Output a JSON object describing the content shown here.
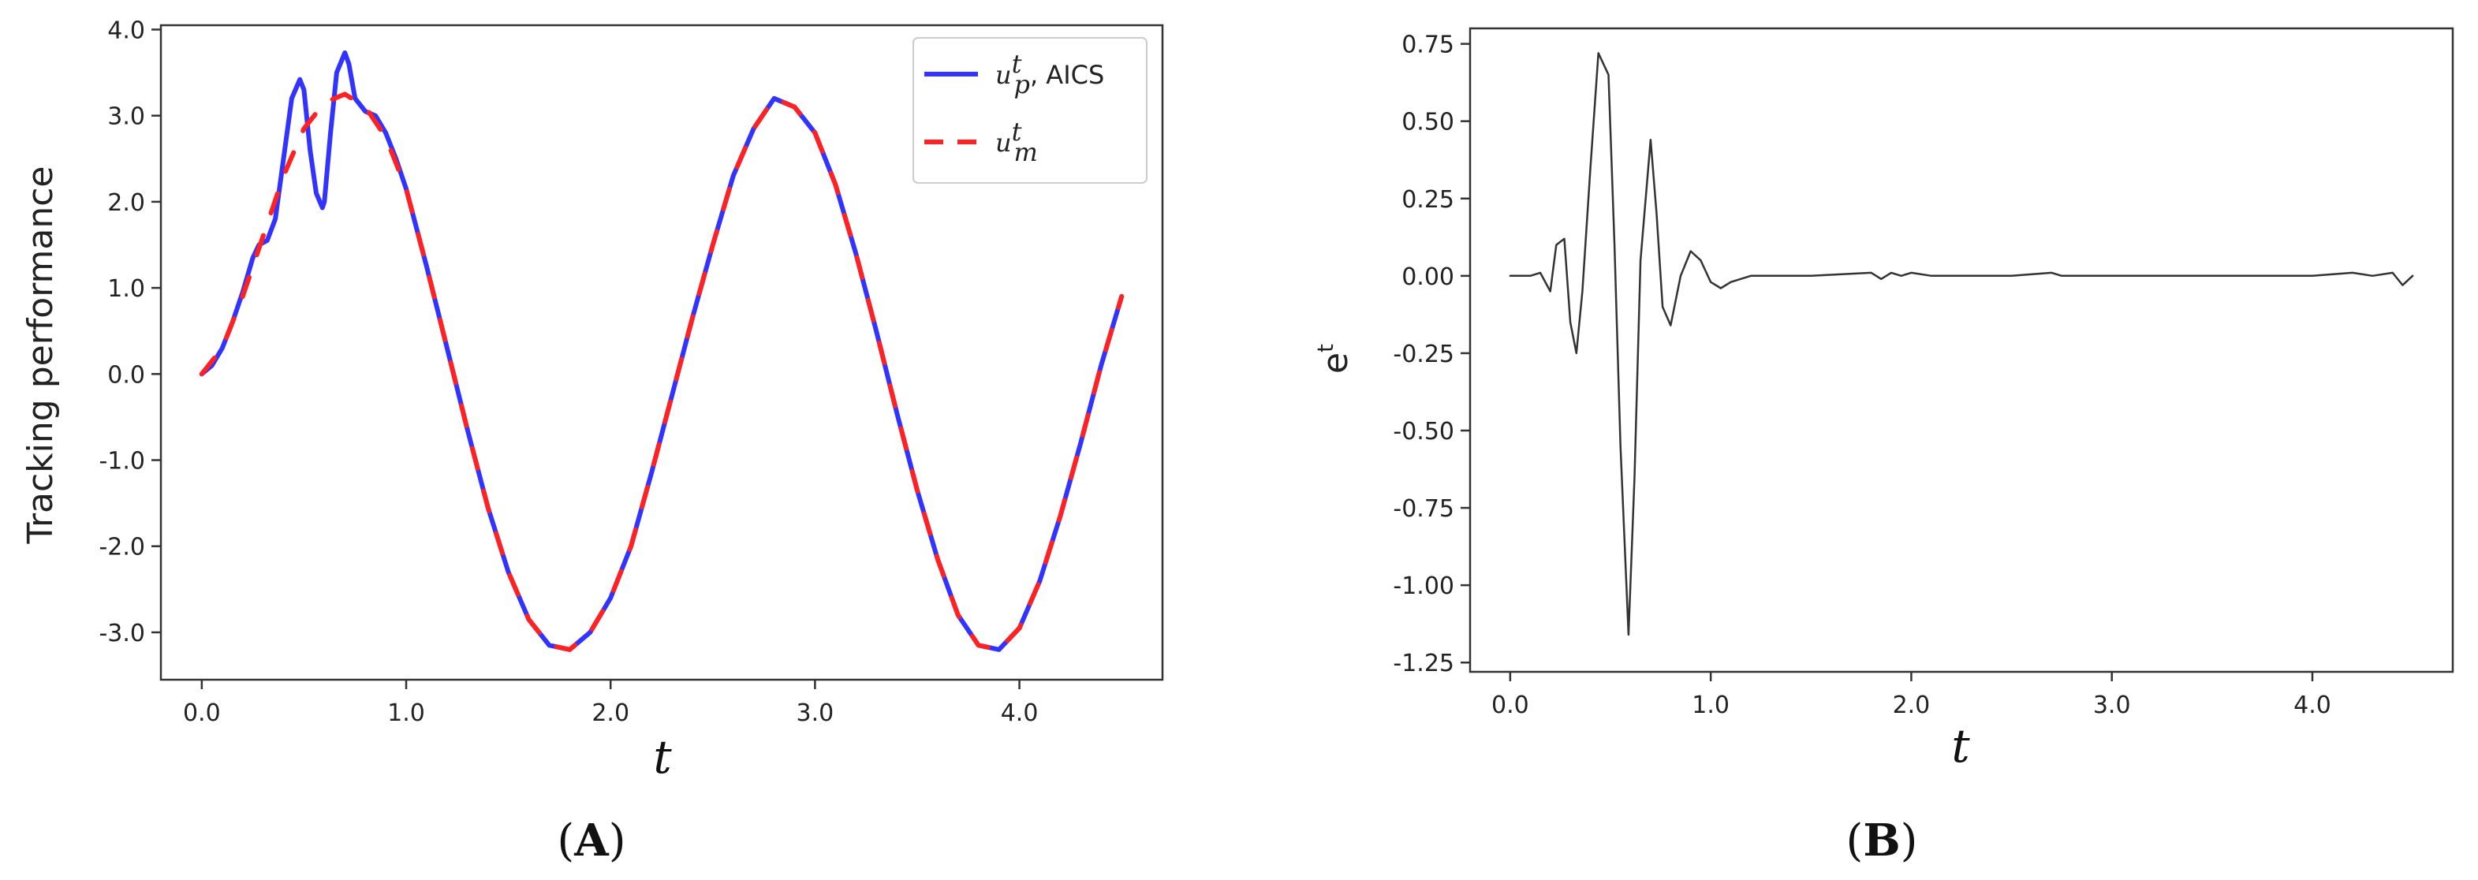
{
  "chart_data": [
    {
      "panel": "A",
      "type": "line",
      "xlabel": "t",
      "ylabel": "Tracking performance",
      "xlim": [
        -0.2,
        4.7
      ],
      "ylim": [
        -3.55,
        4.05
      ],
      "xticks": [
        "0.0",
        "1.0",
        "2.0",
        "3.0",
        "4.0"
      ],
      "xtick_values": [
        0,
        1,
        2,
        3,
        4
      ],
      "yticks": [
        "4.0",
        "3.0",
        "2.0",
        "1.0",
        "0.0",
        "-1.0",
        "-2.0",
        "-3.0"
      ],
      "ytick_values": [
        4,
        3,
        2,
        1,
        0,
        -1,
        -2,
        -3
      ],
      "grid": false,
      "legend_position": "top-right",
      "series": [
        {
          "name": "u_p^t, AICS",
          "legend_main": "u",
          "legend_sub": "p",
          "legend_sup": "t",
          "legend_suffix": ", AICS",
          "color": "#3333ff",
          "style": "solid",
          "x": [
            0.0,
            0.05,
            0.1,
            0.15,
            0.2,
            0.25,
            0.28,
            0.32,
            0.36,
            0.4,
            0.44,
            0.48,
            0.5,
            0.53,
            0.56,
            0.59,
            0.6,
            0.63,
            0.66,
            0.7,
            0.72,
            0.75,
            0.8,
            0.85,
            0.9,
            0.95,
            1.0,
            1.1,
            1.2,
            1.3,
            1.4,
            1.5,
            1.6,
            1.7,
            1.8,
            1.9,
            2.0,
            2.1,
            2.2,
            2.3,
            2.4,
            2.5,
            2.6,
            2.7,
            2.8,
            2.9,
            3.0,
            3.1,
            3.2,
            3.3,
            3.4,
            3.5,
            3.6,
            3.7,
            3.8,
            3.9,
            4.0,
            4.1,
            4.2,
            4.3,
            4.4,
            4.5
          ],
          "y": [
            0.0,
            0.1,
            0.3,
            0.6,
            0.95,
            1.35,
            1.5,
            1.55,
            1.8,
            2.5,
            3.2,
            3.42,
            3.3,
            2.6,
            2.1,
            1.93,
            2.0,
            2.8,
            3.5,
            3.73,
            3.6,
            3.2,
            3.05,
            3.0,
            2.8,
            2.5,
            2.15,
            1.25,
            0.3,
            -0.65,
            -1.55,
            -2.3,
            -2.85,
            -3.15,
            -3.2,
            -3.0,
            -2.6,
            -2.0,
            -1.15,
            -0.25,
            0.65,
            1.5,
            2.3,
            2.85,
            3.2,
            3.1,
            2.8,
            2.2,
            1.4,
            0.5,
            -0.45,
            -1.35,
            -2.15,
            -2.8,
            -3.15,
            -3.2,
            -2.95,
            -2.4,
            -1.65,
            -0.8,
            0.1,
            0.9
          ]
        },
        {
          "name": "u_m^t",
          "legend_main": "u",
          "legend_sub": "m",
          "legend_sup": "t",
          "legend_suffix": "",
          "color": "#ff2222",
          "style": "dashed",
          "x": [
            0.0,
            0.1,
            0.2,
            0.3,
            0.4,
            0.5,
            0.6,
            0.7,
            0.8,
            0.9,
            1.0,
            1.1,
            1.2,
            1.3,
            1.4,
            1.5,
            1.6,
            1.7,
            1.8,
            1.9,
            2.0,
            2.1,
            2.2,
            2.3,
            2.4,
            2.5,
            2.6,
            2.7,
            2.8,
            2.9,
            3.0,
            3.1,
            3.2,
            3.3,
            3.4,
            3.5,
            3.6,
            3.7,
            3.8,
            3.9,
            4.0,
            4.1,
            4.2,
            4.3,
            4.4,
            4.5
          ],
          "y": [
            0.0,
            0.3,
            0.9,
            1.6,
            2.3,
            2.85,
            3.15,
            3.25,
            3.1,
            2.75,
            2.15,
            1.25,
            0.3,
            -0.65,
            -1.55,
            -2.3,
            -2.85,
            -3.15,
            -3.2,
            -3.0,
            -2.6,
            -2.0,
            -1.15,
            -0.25,
            0.65,
            1.5,
            2.3,
            2.85,
            3.2,
            3.1,
            2.8,
            2.2,
            1.4,
            0.5,
            -0.45,
            -1.35,
            -2.15,
            -2.8,
            -3.15,
            -3.2,
            -2.95,
            -2.4,
            -1.65,
            -0.8,
            0.1,
            0.9
          ]
        }
      ]
    },
    {
      "panel": "B",
      "type": "line",
      "xlabel": "t",
      "ylabel": "e^t",
      "ylabel_main": "e",
      "ylabel_sup": "t",
      "xlim": [
        -0.2,
        4.7
      ],
      "ylim": [
        -1.28,
        0.8
      ],
      "xticks": [
        "0.0",
        "1.0",
        "2.0",
        "3.0",
        "4.0"
      ],
      "xtick_values": [
        0,
        1,
        2,
        3,
        4
      ],
      "yticks": [
        "0.75",
        "0.50",
        "0.25",
        "0.00",
        "-0.25",
        "-0.50",
        "-0.75",
        "-1.00",
        "-1.25"
      ],
      "ytick_values": [
        0.75,
        0.5,
        0.25,
        0,
        -0.25,
        -0.5,
        -0.75,
        -1.0,
        -1.25
      ],
      "grid": false,
      "series": [
        {
          "color": "#333333",
          "style": "solid",
          "x": [
            0.0,
            0.1,
            0.15,
            0.2,
            0.23,
            0.27,
            0.3,
            0.33,
            0.36,
            0.4,
            0.44,
            0.49,
            0.52,
            0.55,
            0.59,
            0.62,
            0.65,
            0.7,
            0.73,
            0.76,
            0.8,
            0.85,
            0.9,
            0.95,
            1.0,
            1.05,
            1.1,
            1.2,
            1.5,
            1.8,
            1.85,
            1.9,
            1.95,
            2.0,
            2.1,
            2.5,
            2.7,
            2.75,
            2.8,
            3.0,
            3.5,
            4.0,
            4.2,
            4.3,
            4.4,
            4.45,
            4.5
          ],
          "y": [
            0.0,
            0.0,
            0.01,
            -0.05,
            0.1,
            0.12,
            -0.15,
            -0.25,
            -0.05,
            0.35,
            0.72,
            0.65,
            0.1,
            -0.55,
            -1.16,
            -0.65,
            0.05,
            0.44,
            0.2,
            -0.1,
            -0.16,
            0.0,
            0.08,
            0.05,
            -0.02,
            -0.04,
            -0.02,
            0.0,
            0.0,
            0.01,
            -0.01,
            0.01,
            0.0,
            0.01,
            0.0,
            0.0,
            0.01,
            0.0,
            0.0,
            0.0,
            0.0,
            0.0,
            0.01,
            0.0,
            0.01,
            -0.03,
            0.0
          ]
        }
      ]
    }
  ],
  "captions": {
    "panel_a": {
      "open": "(",
      "letter": "A",
      "close": ")"
    },
    "panel_b": {
      "open": "(",
      "letter": "B",
      "close": ")"
    }
  }
}
